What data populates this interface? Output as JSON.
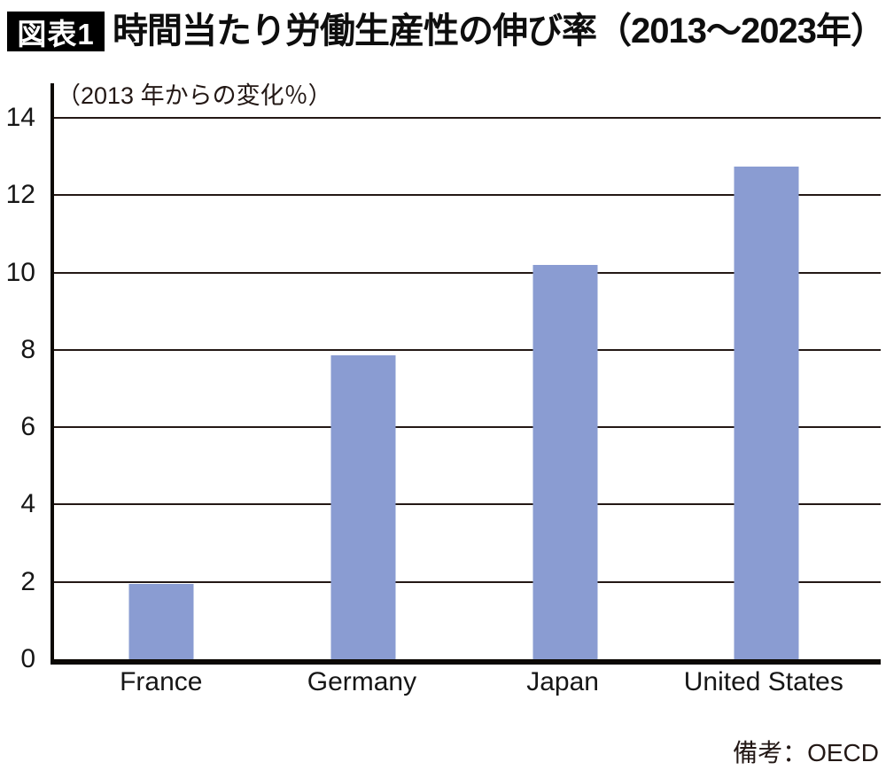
{
  "header": {
    "badge": "図表1",
    "title": "時間当たり労働生産性の伸び率（2013～2023年）"
  },
  "chart": {
    "unit_label": "（2013 年からの変化％）"
  },
  "footer": {
    "source_note": "備考：OECD"
  },
  "colors": {
    "bar": "#8a9cd2",
    "grid": "#231815",
    "axis": "#0c0905",
    "badge_bg": "#000000",
    "badge_text": "#ffffff"
  },
  "chart_data": {
    "type": "bar",
    "title": "時間当たり労働生産性の伸び率（2013～2023年）",
    "subtitle": "（2013 年からの変化％）",
    "source": "備考：OECD",
    "categories": [
      "France",
      "Germany",
      "Japan",
      "United States"
    ],
    "values": [
      1.95,
      7.85,
      10.2,
      12.75
    ],
    "xlabel": "",
    "ylabel": "2013年からの変化％",
    "ylim": [
      0,
      14
    ],
    "yticks": [
      0,
      2,
      4,
      6,
      8,
      10,
      12,
      14
    ],
    "grid": "horizontal",
    "legend": "none"
  }
}
